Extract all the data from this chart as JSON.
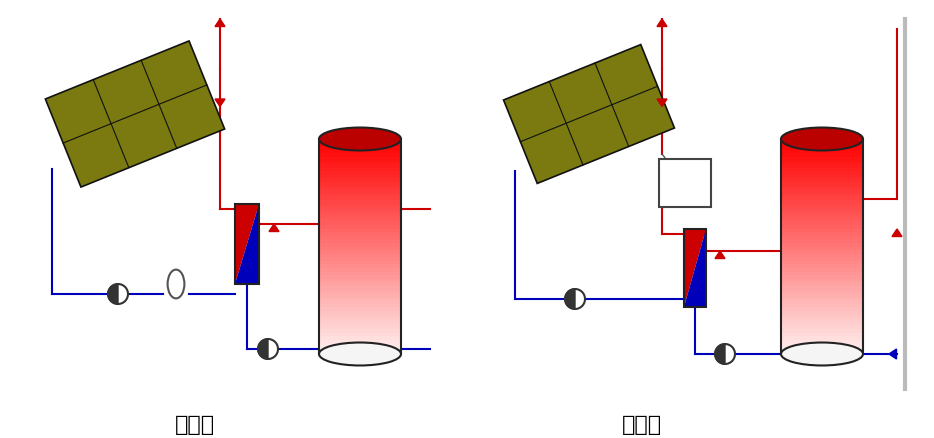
{
  "title_left": "개방형",
  "title_right": "밀폐형",
  "bg_color": "#ffffff",
  "red": "#cc0000",
  "blue": "#0000bb",
  "label_fontsize": 16
}
